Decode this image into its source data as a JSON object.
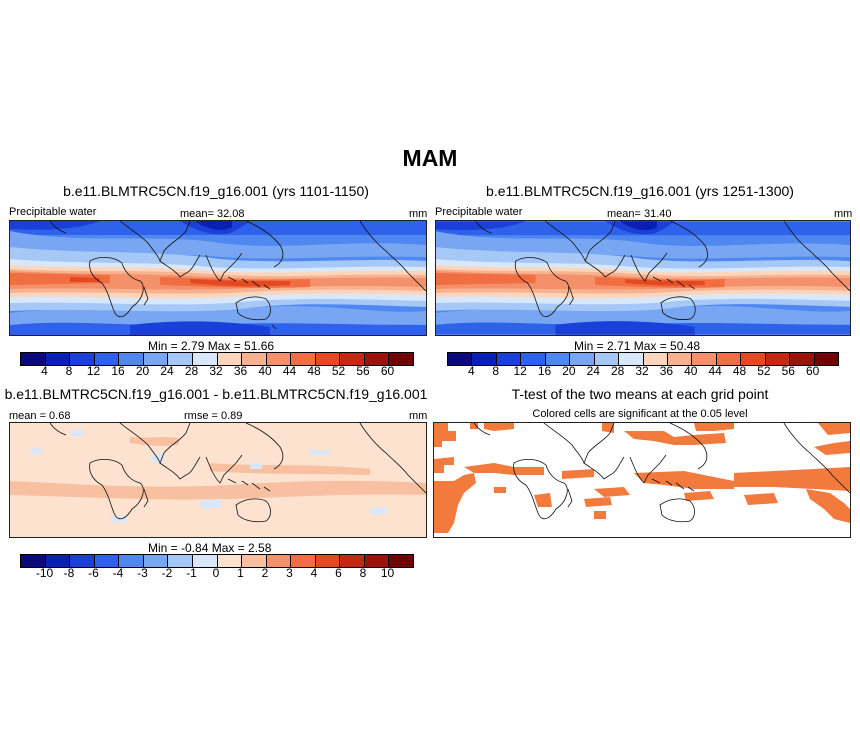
{
  "figure": {
    "title": "MAM"
  },
  "panels": {
    "p1": {
      "title": "b.e11.BLMTRC5CN.f19_g16.001 (yrs 1101-1150)",
      "left_label": "Precipitable water",
      "center_label": "mean=  32.08",
      "right_label": "mm",
      "minmax": "Min =   2.79 Max =  51.66"
    },
    "p2": {
      "title": "b.e11.BLMTRC5CN.f19_g16.001 (yrs 1251-1300)",
      "left_label": "Precipitable water",
      "center_label": "mean=  31.40",
      "right_label": "mm",
      "minmax": "Min =   2.71 Max =  50.48"
    },
    "p3": {
      "title": "b.e11.BLMTRC5CN.f19_g16.001 - b.e11.BLMTRC5CN.f19_g16.001",
      "left_label": "mean =   0.68",
      "center_label": "rmse =   0.89",
      "right_label": "mm",
      "minmax": "Min =  -0.84 Max =   2.58"
    },
    "p4": {
      "title": "T-test of the two means at each grid point",
      "subtitle": "Colored cells are significant at the 0.05 level"
    }
  },
  "colorbars": {
    "abs": {
      "ticks": [
        "4",
        "8",
        "12",
        "16",
        "20",
        "24",
        "28",
        "32",
        "36",
        "40",
        "44",
        "48",
        "52",
        "56",
        "60"
      ],
      "colors": [
        "#0a0a7a",
        "#0a20b4",
        "#1a40d8",
        "#2e62ea",
        "#4e88f0",
        "#78a6f2",
        "#a6c8f6",
        "#d8e8fa",
        "#fcd6bc",
        "#f8b290",
        "#f4906a",
        "#f06e42",
        "#e44a22",
        "#c42a12",
        "#9a1208",
        "#700404"
      ]
    },
    "diff": {
      "ticks": [
        "-10",
        "-8",
        "-6",
        "-4",
        "-3",
        "-2",
        "-1",
        "0",
        "1",
        "2",
        "3",
        "4",
        "6",
        "8",
        "10"
      ],
      "colors": [
        "#0a0a7a",
        "#0a20b4",
        "#1a40d8",
        "#2e62ea",
        "#4e88f0",
        "#78a6f2",
        "#a6c8f6",
        "#d8e8fa",
        "#fce2cf",
        "#f8c0a0",
        "#f4906a",
        "#f06e42",
        "#e44a22",
        "#c42a12",
        "#9a1208",
        "#700404"
      ]
    }
  },
  "map_colors": {
    "sig": "#f17a3c",
    "diff_pos1": "#fce2cf",
    "diff_pos2": "#f8c0a0",
    "diff_neg": "#d8e8fa"
  }
}
